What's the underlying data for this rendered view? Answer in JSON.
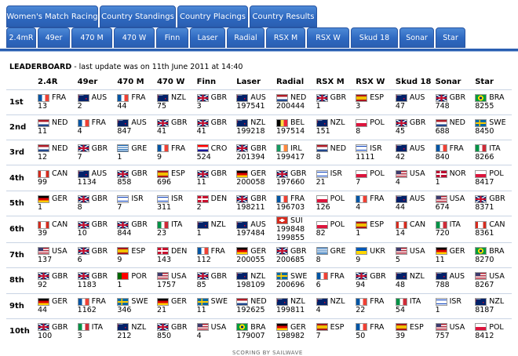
{
  "tabs_row1": [
    "Women's Match Racing",
    "Country Standings",
    "Country Placings",
    "Country Results"
  ],
  "tabs_row2": [
    "2.4mR",
    "49er",
    "470 M",
    "470 W",
    "Finn",
    "Laser",
    "Radial",
    "RSX M",
    "RSX W",
    "Skud 18",
    "Sonar",
    "Star"
  ],
  "leaderboard": {
    "title": "LEADERBOARD",
    "subtitle": " - last update was on 11th June 2011 at 14:40"
  },
  "columns": [
    "2.4R",
    "49er",
    "470 M",
    "470 W",
    "Finn",
    "Laser",
    "Radial",
    "RSX M",
    "RSX W",
    "Skud 18",
    "Sonar",
    "Star"
  ],
  "flag_colors": {
    "FRA": [
      "#0055a4",
      "#ffffff",
      "#ef4135"
    ],
    "AUS": [
      "#012169",
      "#012169",
      "#e4002b"
    ],
    "NZL": [
      "#012169",
      "#012169",
      "#c8102e"
    ],
    "GBR": [
      "#012169",
      "#c8102e",
      "#012169"
    ],
    "NED": [
      "#ae1c28",
      "#ffffff",
      "#21468b"
    ],
    "ESP": [
      "#aa151b",
      "#f1bf00",
      "#aa151b"
    ],
    "BRA": [
      "#009c3b",
      "#ffdf00",
      "#009c3b"
    ],
    "GRE": [
      "#0d5eaf",
      "#ffffff",
      "#0d5eaf"
    ],
    "CRO": [
      "#ff0000",
      "#ffffff",
      "#171796"
    ],
    "BEL": [
      "#000000",
      "#fae042",
      "#ed2939"
    ],
    "IRL": [
      "#169b62",
      "#ffffff",
      "#ff883e"
    ],
    "ISR": [
      "#ffffff",
      "#0038b8",
      "#ffffff"
    ],
    "POL": [
      "#ffffff",
      "#ffffff",
      "#dc143c"
    ],
    "SWE": [
      "#006aa7",
      "#fecc00",
      "#006aa7"
    ],
    "ITA": [
      "#009246",
      "#ffffff",
      "#ce2b37"
    ],
    "CAN": [
      "#d52b1e",
      "#ffffff",
      "#d52b1e"
    ],
    "GER": [
      "#000000",
      "#dd0000",
      "#ffce00"
    ],
    "USA": [
      "#3c3b6e",
      "#b22234",
      "#ffffff"
    ],
    "NOR": [
      "#ba0c2f",
      "#ffffff",
      "#ba0c2f"
    ],
    "DEN": [
      "#c8102e",
      "#ffffff",
      "#c8102e"
    ],
    "SUI": [
      "#d52b1e",
      "#ffffff",
      "#d52b1e"
    ],
    "UKR": [
      "#0057b7",
      "#0057b7",
      "#ffd700"
    ],
    "POR": [
      "#006600",
      "#ff0000",
      "#ff0000"
    ]
  },
  "rows": [
    {
      "rank": "1st",
      "cells": [
        {
          "c": "FRA",
          "v": [
            "13"
          ]
        },
        {
          "c": "AUS",
          "v": [
            "2"
          ]
        },
        {
          "c": "FRA",
          "v": [
            "44"
          ]
        },
        {
          "c": "NZL",
          "v": [
            "75"
          ]
        },
        {
          "c": "GBR",
          "v": [
            "3"
          ]
        },
        {
          "c": "AUS",
          "v": [
            "197541"
          ]
        },
        {
          "c": "NED",
          "v": [
            "200444"
          ]
        },
        {
          "c": "GBR",
          "v": [
            "1"
          ]
        },
        {
          "c": "ESP",
          "v": [
            "3"
          ]
        },
        {
          "c": "AUS",
          "v": [
            "47"
          ]
        },
        {
          "c": "GBR",
          "v": [
            "748"
          ]
        },
        {
          "c": "BRA",
          "v": [
            "8255"
          ]
        }
      ]
    },
    {
      "rank": "2nd",
      "cells": [
        {
          "c": "NED",
          "v": [
            "11"
          ]
        },
        {
          "c": "FRA",
          "v": [
            "4"
          ]
        },
        {
          "c": "AUS",
          "v": [
            "847"
          ]
        },
        {
          "c": "GBR",
          "v": [
            "41"
          ]
        },
        {
          "c": "GBR",
          "v": [
            "41"
          ]
        },
        {
          "c": "NZL",
          "v": [
            "199218"
          ]
        },
        {
          "c": "BEL",
          "v": [
            "197514"
          ]
        },
        {
          "c": "NZL",
          "v": [
            "151"
          ]
        },
        {
          "c": "POL",
          "v": [
            "8"
          ]
        },
        {
          "c": "GBR",
          "v": [
            "45"
          ]
        },
        {
          "c": "NED",
          "v": [
            "688"
          ]
        },
        {
          "c": "SWE",
          "v": [
            "8450"
          ]
        }
      ]
    },
    {
      "rank": "3rd",
      "cells": [
        {
          "c": "NED",
          "v": [
            "12"
          ]
        },
        {
          "c": "GBR",
          "v": [
            "7"
          ]
        },
        {
          "c": "GRE",
          "v": [
            "1"
          ]
        },
        {
          "c": "FRA",
          "v": [
            "9"
          ]
        },
        {
          "c": "CRO",
          "v": [
            "524"
          ]
        },
        {
          "c": "GBR",
          "v": [
            "201394"
          ]
        },
        {
          "c": "IRL",
          "v": [
            "199417"
          ]
        },
        {
          "c": "NED",
          "v": [
            "8"
          ]
        },
        {
          "c": "ISR",
          "v": [
            "1111"
          ]
        },
        {
          "c": "AUS",
          "v": [
            "42"
          ]
        },
        {
          "c": "FRA",
          "v": [
            "840"
          ]
        },
        {
          "c": "ITA",
          "v": [
            "8266"
          ]
        }
      ]
    },
    {
      "rank": "4th",
      "cells": [
        {
          "c": "CAN",
          "v": [
            "99"
          ]
        },
        {
          "c": "AUS",
          "v": [
            "1134"
          ]
        },
        {
          "c": "GBR",
          "v": [
            "858"
          ]
        },
        {
          "c": "ESP",
          "v": [
            "696"
          ]
        },
        {
          "c": "GBR",
          "v": [
            "11"
          ]
        },
        {
          "c": "GER",
          "v": [
            "200058"
          ]
        },
        {
          "c": "GBR",
          "v": [
            "197660"
          ]
        },
        {
          "c": "ISR",
          "v": [
            "21"
          ]
        },
        {
          "c": "POL",
          "v": [
            "7"
          ]
        },
        {
          "c": "USA",
          "v": [
            "4"
          ]
        },
        {
          "c": "NOR",
          "v": [
            "1"
          ]
        },
        {
          "c": "POL",
          "v": [
            "8417"
          ]
        }
      ]
    },
    {
      "rank": "5th",
      "cells": [
        {
          "c": "GER",
          "v": [
            "1"
          ]
        },
        {
          "c": "GBR",
          "v": [
            "8"
          ]
        },
        {
          "c": "ISR",
          "v": [
            "7"
          ]
        },
        {
          "c": "ISR",
          "v": [
            "311"
          ]
        },
        {
          "c": "DEN",
          "v": [
            "2"
          ]
        },
        {
          "c": "GBR",
          "v": [
            "198211"
          ]
        },
        {
          "c": "FRA",
          "v": [
            "196703"
          ]
        },
        {
          "c": "POL",
          "v": [
            "126"
          ]
        },
        {
          "c": "FRA",
          "v": [
            "4"
          ]
        },
        {
          "c": "AUS",
          "v": [
            "44"
          ]
        },
        {
          "c": "USA",
          "v": [
            "674"
          ]
        },
        {
          "c": "GBR",
          "v": [
            "8371"
          ]
        }
      ]
    },
    {
      "rank": "6th",
      "cells": [
        {
          "c": "CAN",
          "v": [
            "39"
          ]
        },
        {
          "c": "GBR",
          "v": [
            "10"
          ]
        },
        {
          "c": "GBR",
          "v": [
            "844"
          ]
        },
        {
          "c": "ITA",
          "v": [
            "23"
          ]
        },
        {
          "c": "NZL",
          "v": [
            "1"
          ]
        },
        {
          "c": "AUS",
          "v": [
            "197484"
          ]
        },
        {
          "c": "SUI",
          "v": [
            "199848",
            "199855"
          ]
        },
        {
          "c": "POL",
          "v": [
            "82"
          ]
        },
        {
          "c": "ESP",
          "v": [
            "1"
          ]
        },
        {
          "c": "CAN",
          "v": [
            "14"
          ]
        },
        {
          "c": "ITA",
          "v": [
            "720"
          ]
        },
        {
          "c": "CAN",
          "v": [
            "8361"
          ]
        }
      ]
    },
    {
      "rank": "7th",
      "cells": [
        {
          "c": "USA",
          "v": [
            "137"
          ]
        },
        {
          "c": "GBR",
          "v": [
            "6"
          ]
        },
        {
          "c": "ESP",
          "v": [
            "9"
          ]
        },
        {
          "c": "DEN",
          "v": [
            "143"
          ]
        },
        {
          "c": "FRA",
          "v": [
            "112"
          ]
        },
        {
          "c": "GER",
          "v": [
            "200055"
          ]
        },
        {
          "c": "GBR",
          "v": [
            "200685"
          ]
        },
        {
          "c": "GRE",
          "v": [
            "8"
          ]
        },
        {
          "c": "UKR",
          "v": [
            "9"
          ]
        },
        {
          "c": "USA",
          "v": [
            "5"
          ]
        },
        {
          "c": "GER",
          "v": [
            "11"
          ]
        },
        {
          "c": "BRA",
          "v": [
            "8270"
          ]
        }
      ]
    },
    {
      "rank": "8th",
      "cells": [
        {
          "c": "GBR",
          "v": [
            "92"
          ]
        },
        {
          "c": "GBR",
          "v": [
            "1183"
          ]
        },
        {
          "c": "POR",
          "v": [
            "1"
          ]
        },
        {
          "c": "USA",
          "v": [
            "1757"
          ]
        },
        {
          "c": "GBR",
          "v": [
            "85"
          ]
        },
        {
          "c": "NZL",
          "v": [
            "198109"
          ]
        },
        {
          "c": "SWE",
          "v": [
            "200696"
          ]
        },
        {
          "c": "FRA",
          "v": [
            "6"
          ]
        },
        {
          "c": "GBR",
          "v": [
            "94"
          ]
        },
        {
          "c": "NZL",
          "v": [
            "48"
          ]
        },
        {
          "c": "AUS",
          "v": [
            "788"
          ]
        },
        {
          "c": "USA",
          "v": [
            "8267"
          ]
        }
      ]
    },
    {
      "rank": "9th",
      "cells": [
        {
          "c": "GER",
          "v": [
            "44"
          ]
        },
        {
          "c": "FRA",
          "v": [
            "1162"
          ]
        },
        {
          "c": "SWE",
          "v": [
            "346"
          ]
        },
        {
          "c": "GER",
          "v": [
            "21"
          ]
        },
        {
          "c": "SWE",
          "v": [
            "11"
          ]
        },
        {
          "c": "NED",
          "v": [
            "192625"
          ]
        },
        {
          "c": "NZL",
          "v": [
            "199811"
          ]
        },
        {
          "c": "NZL",
          "v": [
            "4"
          ]
        },
        {
          "c": "FRA",
          "v": [
            "22"
          ]
        },
        {
          "c": "ITA",
          "v": [
            "54"
          ]
        },
        {
          "c": "ISR",
          "v": [
            "1"
          ]
        },
        {
          "c": "NZL",
          "v": [
            "8187"
          ]
        }
      ]
    },
    {
      "rank": "10th",
      "cells": [
        {
          "c": "GBR",
          "v": [
            "100"
          ]
        },
        {
          "c": "ITA",
          "v": [
            "3"
          ]
        },
        {
          "c": "NZL",
          "v": [
            "212"
          ]
        },
        {
          "c": "GBR",
          "v": [
            "850"
          ]
        },
        {
          "c": "USA",
          "v": [
            "4"
          ]
        },
        {
          "c": "BRA",
          "v": [
            "179007"
          ]
        },
        {
          "c": "GER",
          "v": [
            "198982"
          ]
        },
        {
          "c": "ESP",
          "v": [
            "7"
          ]
        },
        {
          "c": "FRA",
          "v": [
            "50"
          ]
        },
        {
          "c": "ESP",
          "v": [
            "39"
          ]
        },
        {
          "c": "USA",
          "v": [
            "757"
          ]
        },
        {
          "c": "POL",
          "v": [
            "8412"
          ]
        }
      ]
    }
  ],
  "footer": "SCORING BY SAILWAVE"
}
